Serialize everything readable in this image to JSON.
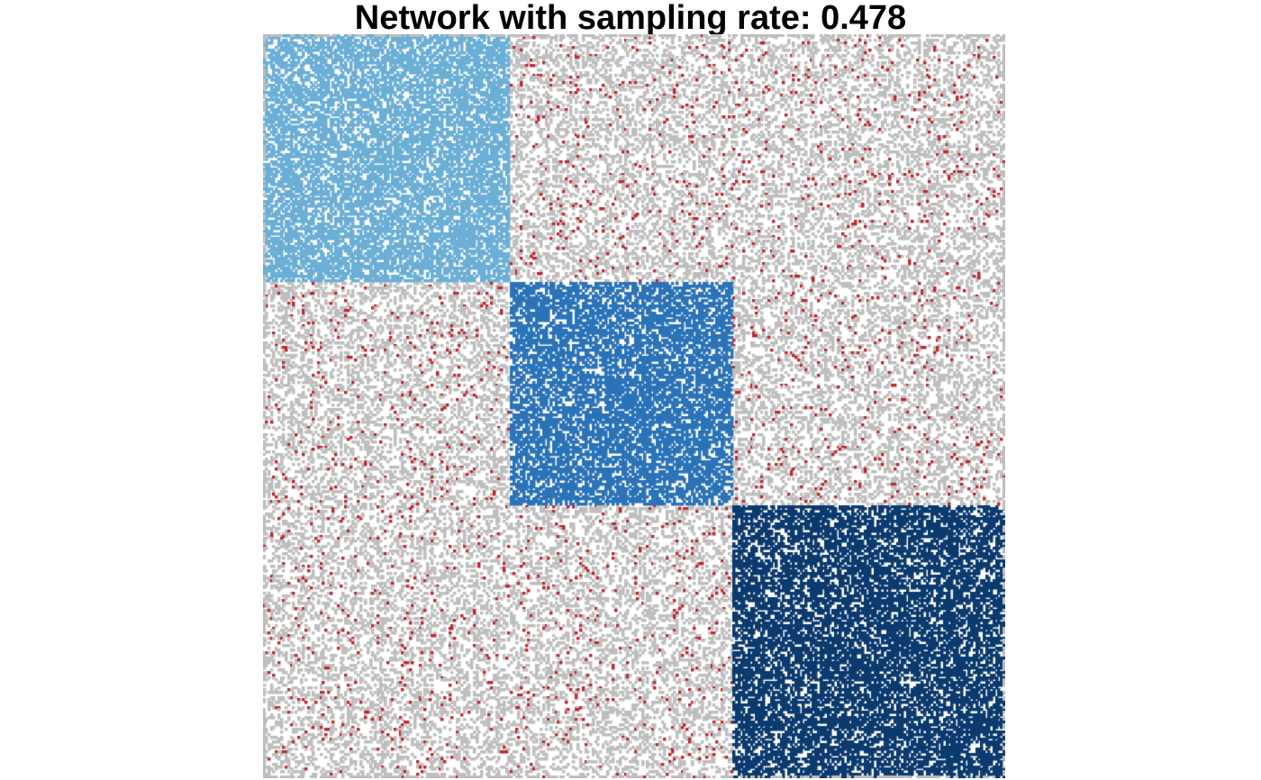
{
  "title": "Network with sampling rate: 0.478",
  "chart_data": {
    "type": "heatmap",
    "title": "Network with sampling rate: 0.478",
    "description_free": true,
    "matrix_nodes": 300,
    "sampling_rate": 0.478,
    "blocks": [
      {
        "community": 1,
        "node_range": [
          1,
          100
        ],
        "color": "#6baed6"
      },
      {
        "community": 2,
        "node_range": [
          101,
          190
        ],
        "color": "#2b73b8"
      },
      {
        "community": 3,
        "node_range": [
          191,
          300
        ],
        "color": "#0b3a6e"
      }
    ],
    "background_colors": {
      "unobserved_edge": "#bebebe",
      "no_edge": "#ffffff",
      "cross_block_observed_edge": "#c0272d"
    },
    "within_block_density": 0.7,
    "cross_block_missing_density": 0.35,
    "cross_block_edge_density": 0.03,
    "grid": false,
    "axes": false,
    "legend": false
  }
}
